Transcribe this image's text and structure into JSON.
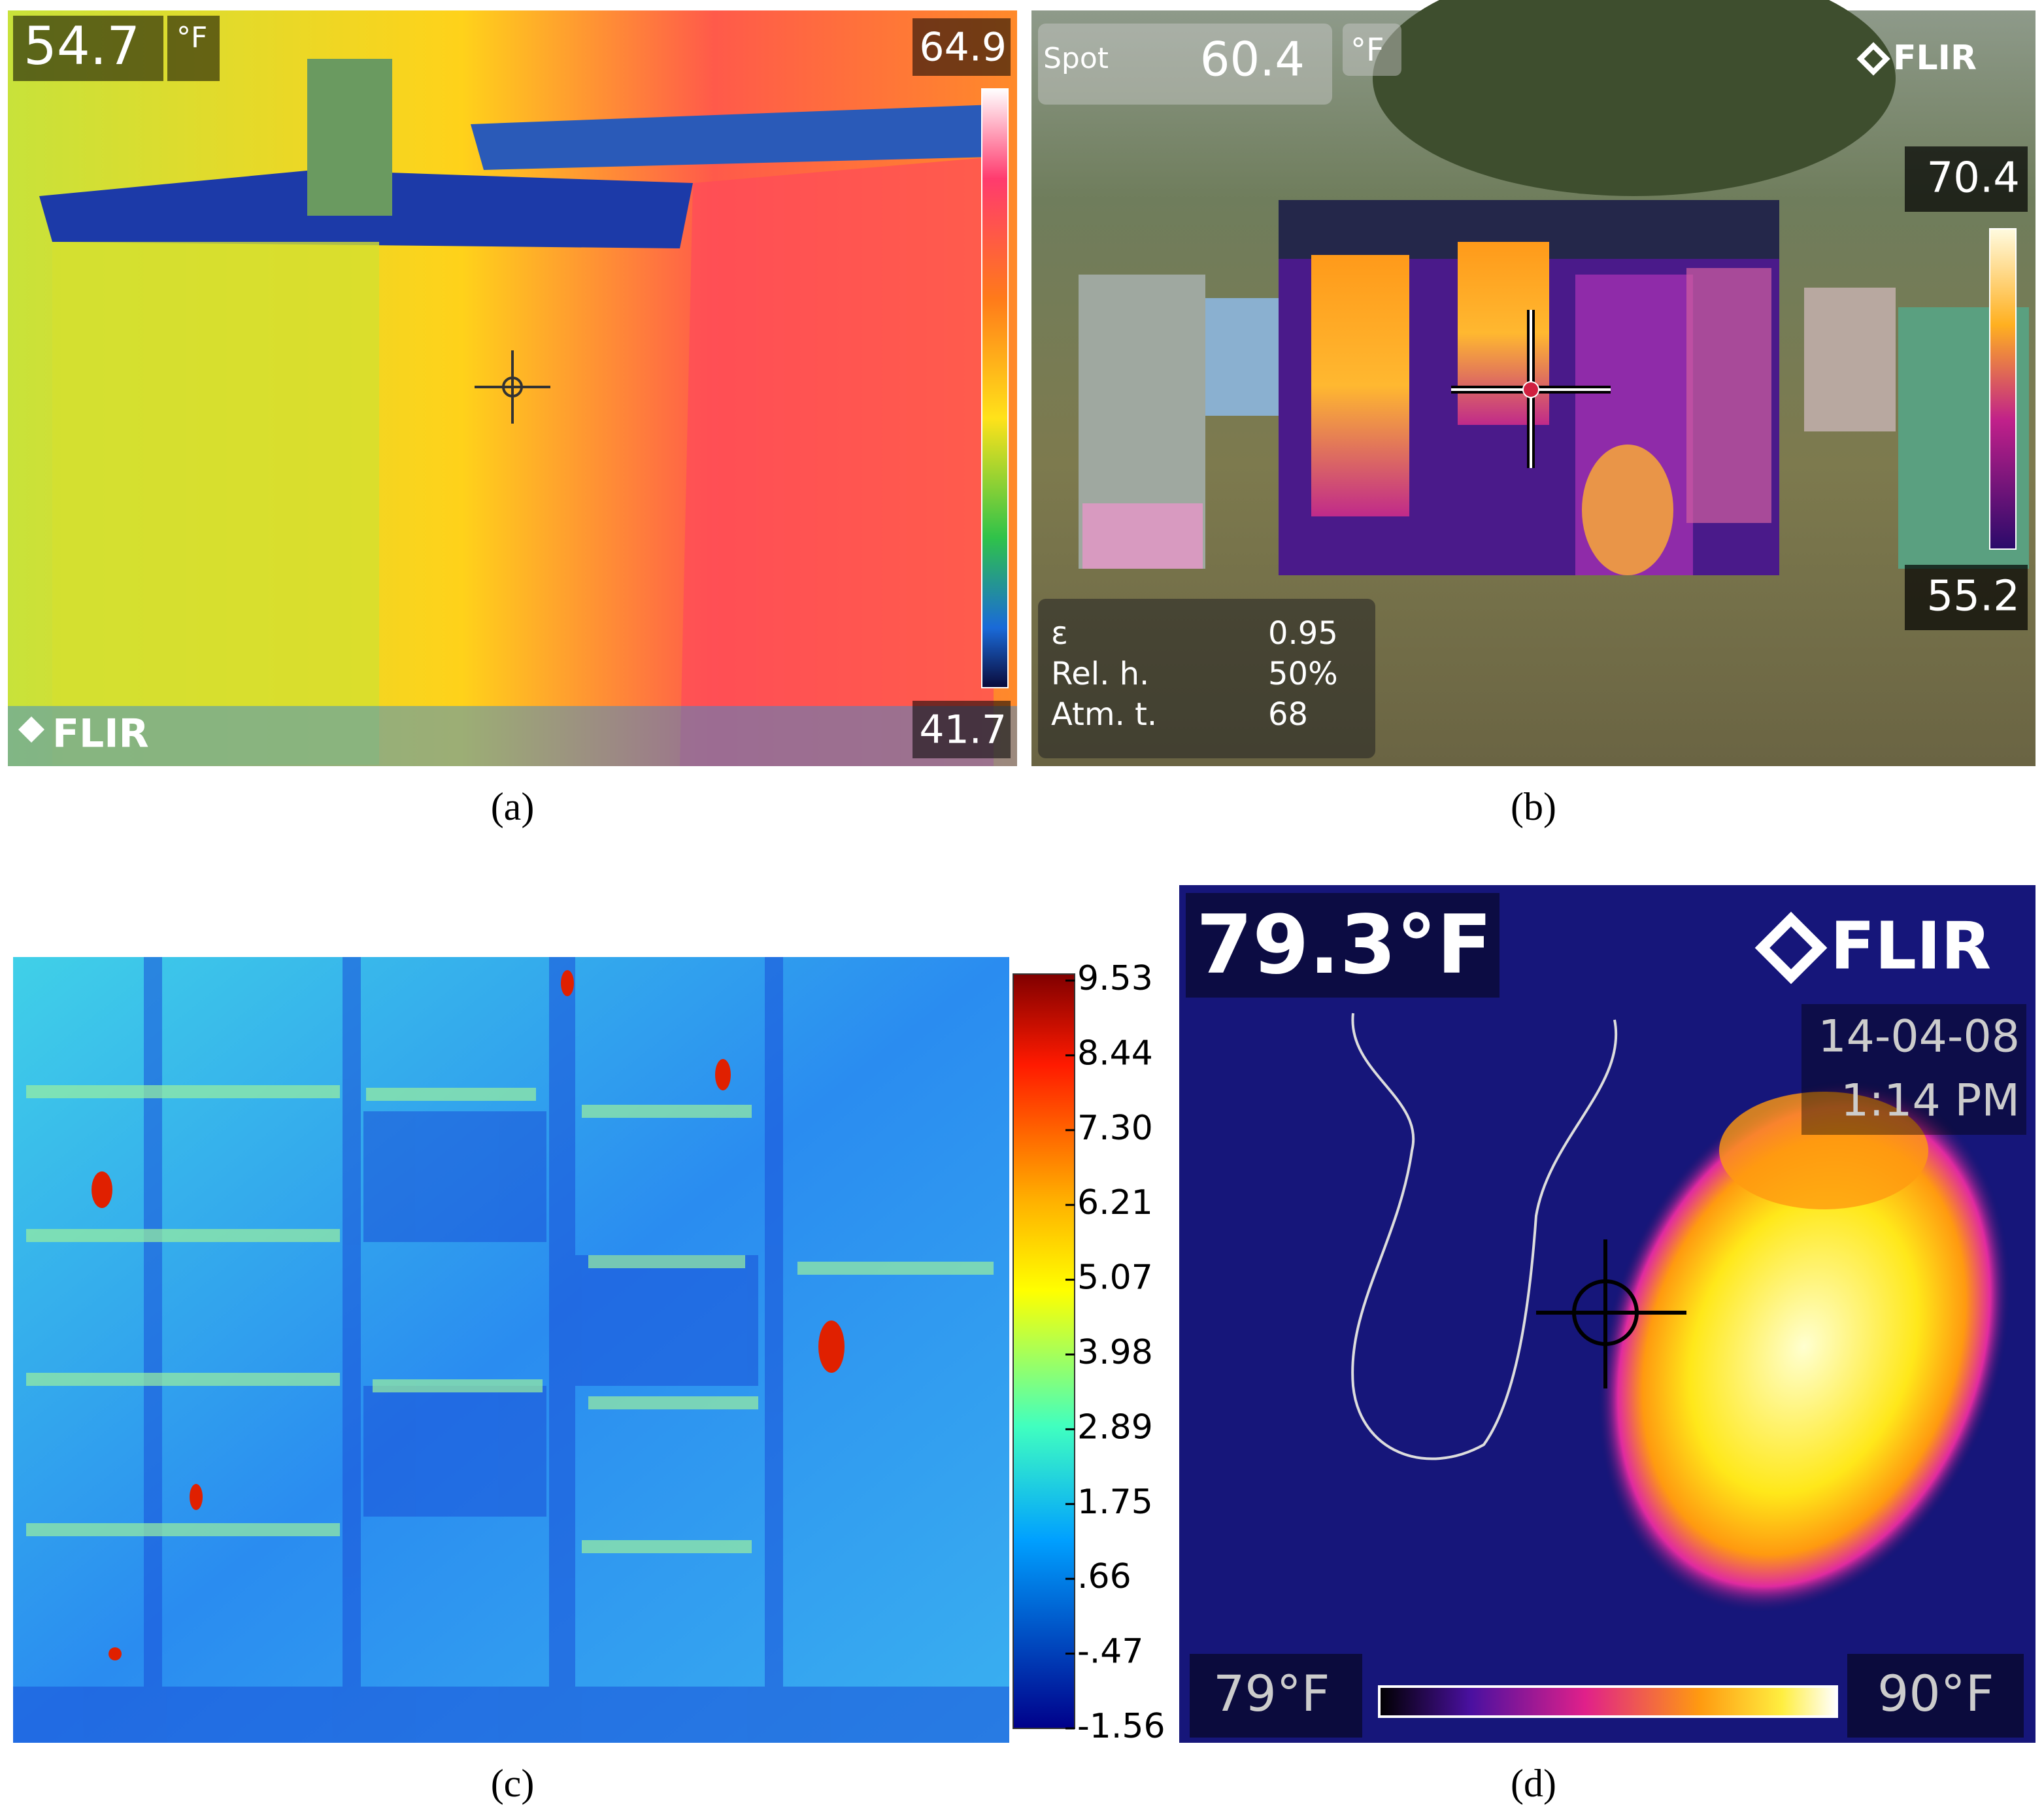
{
  "panels": [
    {
      "label": "(a)",
      "readout": "54.7",
      "unit": "°F",
      "scale_max": "64.9",
      "scale_min": "41.7",
      "brand": "FLIR"
    },
    {
      "label": "(b)",
      "spot_label": "Spot",
      "readout": "60.4",
      "unit": "°F",
      "brand": "FLIR",
      "scale_max": "70.4",
      "scale_min": "55.2",
      "params": [
        [
          "ε",
          "0.95"
        ],
        [
          "Rel. h.",
          "50%"
        ],
        [
          "Atm. t.",
          "68"
        ]
      ]
    },
    {
      "label": "(c)",
      "scale_ticks": [
        "9.53",
        "8.44",
        "7.30",
        "6.21",
        "5.07",
        "3.98",
        "2.89",
        "1.75",
        ".66",
        "-.47",
        "-1.56"
      ]
    },
    {
      "label": "(d)",
      "readout": "79.3°F",
      "brand": "FLIR",
      "date": "14-04-08",
      "time": "1:14 PM",
      "scale_min": "79°F",
      "scale_max": "90°F"
    }
  ]
}
